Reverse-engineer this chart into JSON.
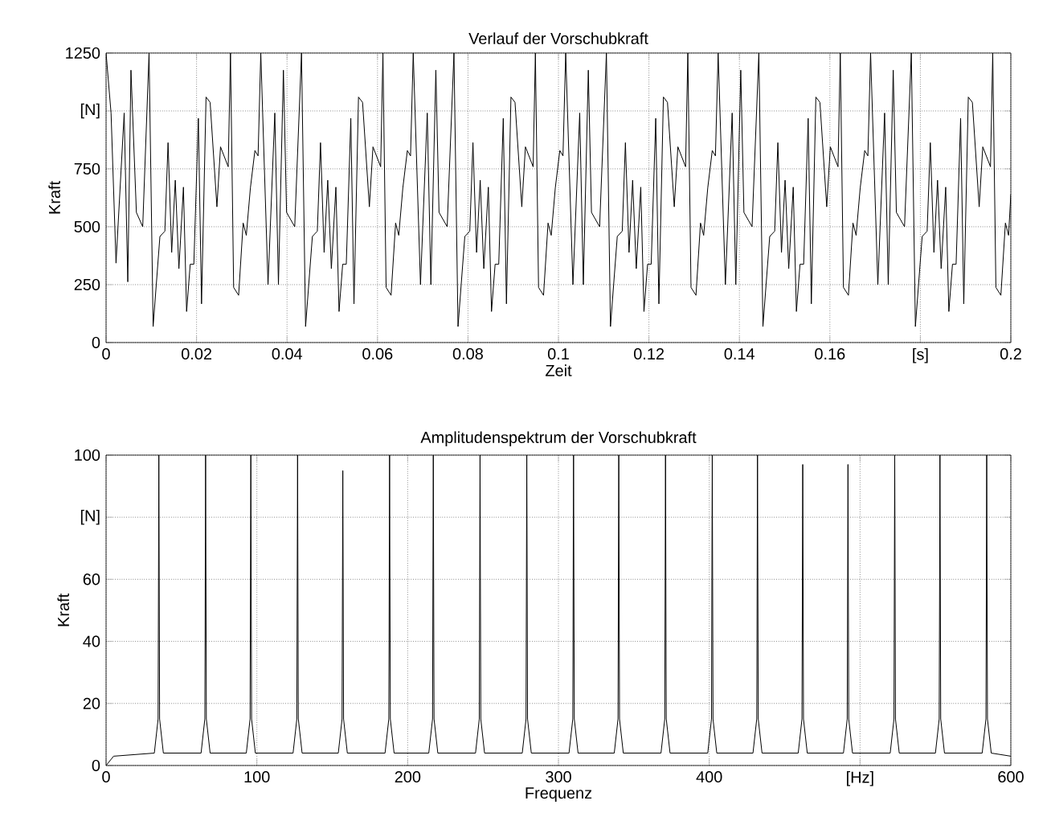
{
  "chart_data": [
    {
      "type": "line",
      "title": "Verlauf der Vorschubkraft",
      "xlabel": "Zeit",
      "ylabel": "Kraft",
      "grid": true,
      "xlim": [
        0,
        0.2
      ],
      "ylim": [
        0,
        1250
      ],
      "xticks": [
        0,
        0.02,
        0.04,
        0.06,
        0.08,
        0.1,
        0.12,
        0.14,
        0.16,
        {
          "value": 0.18,
          "label": "[s]"
        },
        0.2
      ],
      "yticks": [
        0,
        250,
        500,
        750,
        {
          "value": 1000,
          "label": "[N]"
        },
        1250
      ],
      "series": [
        {
          "color": "#000000",
          "x": [
            0,
            0.0011,
            0.0022,
            0.004,
            0.0048,
            0.0055,
            0.0067,
            0.0081,
            0.0095,
            0.0104,
            0.0119,
            0.013,
            0.0137,
            0.0145,
            0.0153,
            0.0161,
            0.0171,
            0.0178,
            0.0186,
            0.0194,
            0.0204,
            0.0211,
            0.0221,
            0.023,
            0.0245,
            0.0253,
            0.027,
            0.0275,
            0.0282,
            0.0293,
            0.0303,
            0.031,
            0.0319,
            0.0329,
            0.0336,
            0.0342,
            0.0358,
            0.0373,
            0.0381,
            0.0392,
            0.0399,
            0.0417,
            0.0432,
            0.0441,
            0.0456,
            0.0467,
            0.0474,
            0.0482,
            0.049,
            0.0498,
            0.0508,
            0.0515,
            0.0523,
            0.0531,
            0.0541,
            0.0548,
            0.0558,
            0.0567,
            0.0582,
            0.059,
            0.0607,
            0.0612,
            0.0619,
            0.063,
            0.064,
            0.0647,
            0.0656,
            0.0666,
            0.0673,
            0.0679,
            0.0695,
            0.071,
            0.0718,
            0.0729,
            0.0736,
            0.0754,
            0.0769,
            0.0778,
            0.0793,
            0.0804,
            0.0811,
            0.0819,
            0.0827,
            0.0835,
            0.0845,
            0.0852,
            0.086,
            0.0868,
            0.0878,
            0.0885,
            0.0895,
            0.0904,
            0.0919,
            0.0927,
            0.0944,
            0.0949,
            0.0956,
            0.0967,
            0.0977,
            0.0984,
            0.0993,
            0.1003,
            0.101,
            0.1016,
            0.1032,
            0.1047,
            0.1055,
            0.1066,
            0.1073,
            0.1091,
            0.1106,
            0.1115,
            0.113,
            0.1141,
            0.1148,
            0.1156,
            0.1164,
            0.1172,
            0.1182,
            0.1189,
            0.1197,
            0.1205,
            0.1215,
            0.1222,
            0.1232,
            0.1241,
            0.1256,
            0.1264,
            0.1281,
            0.1286,
            0.1293,
            0.1304,
            0.1314,
            0.1321,
            0.133,
            0.134,
            0.1347,
            0.1353,
            0.1369,
            0.1384,
            0.1392,
            0.1403,
            0.141,
            0.1428,
            0.1443,
            0.1452,
            0.1467,
            0.1478,
            0.1485,
            0.1493,
            0.1501,
            0.1509,
            0.1519,
            0.1526,
            0.1534,
            0.1542,
            0.1552,
            0.1559,
            0.1569,
            0.1578,
            0.1593,
            0.1601,
            0.1618,
            0.1623,
            0.163,
            0.1641,
            0.1651,
            0.1658,
            0.1667,
            0.1677,
            0.1684,
            0.169,
            0.1706,
            0.1721,
            0.1729,
            0.174,
            0.1747,
            0.1765,
            0.178,
            0.1789,
            0.1804,
            0.1815,
            0.1822,
            0.183,
            0.1838,
            0.1846,
            0.1856,
            0.1863,
            0.1871,
            0.1879,
            0.1889,
            0.1896,
            0.1906,
            0.1915,
            0.193,
            0.1938,
            0.1955,
            0.196,
            0.1967,
            0.1978,
            0.1988,
            0.1995,
            0.2
          ],
          "values": [
            1250,
            991,
            343,
            991,
            262,
            1176,
            562,
            500,
            1250,
            69,
            458,
            481,
            863,
            389,
            701,
            319,
            671,
            134,
            338,
            338,
            968,
            167,
            1060,
            1037,
            586,
            845,
            759,
            1250,
            238,
            204,
            516,
            463,
            667,
            829,
            806,
            1250,
            250,
            991,
            250,
            1176,
            562,
            500,
            1250,
            69,
            458,
            481,
            863,
            389,
            701,
            319,
            671,
            134,
            338,
            338,
            968,
            167,
            1060,
            1037,
            586,
            845,
            759,
            1250,
            238,
            204,
            516,
            463,
            667,
            829,
            806,
            1250,
            250,
            991,
            250,
            1176,
            562,
            500,
            1250,
            69,
            458,
            481,
            863,
            389,
            701,
            319,
            671,
            134,
            338,
            338,
            968,
            167,
            1060,
            1037,
            586,
            845,
            759,
            1250,
            238,
            204,
            516,
            463,
            667,
            829,
            806,
            1250,
            250,
            991,
            250,
            1176,
            562,
            500,
            1250,
            69,
            458,
            481,
            863,
            389,
            701,
            319,
            671,
            134,
            338,
            338,
            968,
            167,
            1060,
            1037,
            586,
            845,
            759,
            1250,
            238,
            204,
            516,
            463,
            667,
            829,
            806,
            1250,
            250,
            991,
            250,
            1176,
            562,
            500,
            1250,
            69,
            458,
            481,
            863,
            389,
            701,
            319,
            671,
            134,
            338,
            338,
            968,
            167,
            1060,
            1037,
            586,
            845,
            759,
            1250,
            238,
            204,
            516,
            463,
            667,
            829,
            806,
            1250,
            250,
            991,
            250,
            1176,
            562,
            500,
            1250,
            69,
            458,
            481,
            863,
            389,
            701,
            319,
            671,
            134,
            338,
            338,
            968,
            167,
            1060,
            1037,
            586,
            845,
            759,
            1250,
            238,
            204,
            516,
            463,
            640
          ]
        }
      ]
    },
    {
      "type": "line",
      "title": "Amplitudenspektrum der Vorschubkraft",
      "xlabel": "Frequenz",
      "ylabel": "Kraft",
      "grid": true,
      "xlim": [
        0,
        600
      ],
      "ylim": [
        0,
        100
      ],
      "xticks": [
        0,
        100,
        200,
        300,
        400,
        {
          "value": 500,
          "label": "[Hz]"
        },
        600
      ],
      "yticks": [
        0,
        20,
        40,
        60,
        {
          "value": 80,
          "label": "[N]"
        },
        100
      ],
      "series": [
        {
          "color": "#000000",
          "x": [
            0,
            5,
            32,
            34.5,
            35,
            35.5,
            38,
            63,
            65.5,
            66,
            66.5,
            69,
            93,
            95.5,
            96,
            96.5,
            99,
            124,
            126.5,
            127,
            127.5,
            130,
            154,
            156.5,
            157,
            157.5,
            160,
            185,
            187.5,
            188,
            188.5,
            191,
            214,
            216.5,
            217,
            217.5,
            220,
            245,
            247.5,
            248,
            248.5,
            251,
            276,
            278.5,
            279,
            279.5,
            282,
            307,
            309.5,
            310,
            310.5,
            313,
            337,
            339.5,
            340,
            340.5,
            343,
            368,
            370.5,
            371,
            371.5,
            374,
            399,
            401.5,
            402,
            402.5,
            405,
            429,
            431.5,
            432,
            432.5,
            435,
            459,
            461.5,
            462,
            462.5,
            465,
            489,
            491.5,
            492,
            492.5,
            495,
            520,
            522.5,
            523,
            523.5,
            526,
            550,
            552.5,
            553,
            553.5,
            556,
            581,
            583.5,
            584,
            584.5,
            587,
            600
          ],
          "values": [
            0,
            3,
            4,
            15,
            100,
            15,
            4,
            4,
            15,
            100,
            15,
            4,
            4,
            15,
            100,
            15,
            4,
            4,
            15,
            100,
            15,
            4,
            4,
            15,
            95,
            15,
            4,
            4,
            15,
            100,
            15,
            4,
            4,
            15,
            100,
            15,
            4,
            4,
            15,
            100,
            15,
            4,
            4,
            15,
            100,
            15,
            4,
            4,
            15,
            100,
            15,
            4,
            4,
            15,
            100,
            15,
            4,
            4,
            15,
            100,
            15,
            4,
            4,
            15,
            100,
            15,
            4,
            4,
            15,
            100,
            15,
            4,
            4,
            15,
            97,
            15,
            4,
            4,
            15,
            97,
            15,
            4,
            4,
            15,
            100,
            15,
            4,
            4,
            15,
            100,
            15,
            4,
            4,
            15,
            100,
            15,
            4,
            3
          ]
        }
      ]
    }
  ]
}
